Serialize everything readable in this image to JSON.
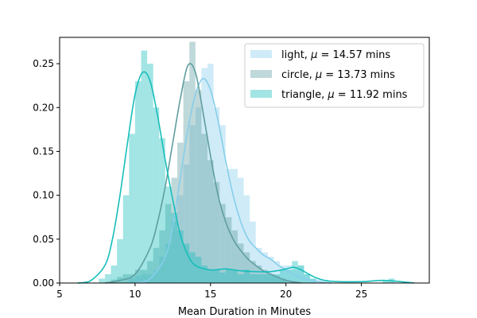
{
  "chart_data": {
    "type": "histogram-kde",
    "xlabel": "Mean Duration in Minutes",
    "ylabel": "",
    "xlim": [
      5,
      29.5
    ],
    "ylim": [
      0,
      0.28
    ],
    "x_ticks": [
      5,
      10,
      15,
      20,
      25
    ],
    "y_ticks": [
      0.0,
      0.05,
      0.1,
      0.15,
      0.2,
      0.25
    ],
    "grid": false,
    "legend_position": "upper right",
    "bin_width": 0.4,
    "series": [
      {
        "name": "light,  μ = 14.57 mins",
        "legend_prefix": "light,  ",
        "legend_value": "= 14.57 mins",
        "color": "#87ceeb",
        "bins": [
          [
            9.6,
            0.005
          ],
          [
            10.0,
            0.008
          ],
          [
            10.4,
            0.01
          ],
          [
            10.8,
            0.01
          ],
          [
            11.2,
            0.015
          ],
          [
            11.6,
            0.03
          ],
          [
            12.0,
            0.045
          ],
          [
            12.4,
            0.07
          ],
          [
            12.8,
            0.1
          ],
          [
            13.2,
            0.135
          ],
          [
            13.6,
            0.18
          ],
          [
            14.0,
            0.2
          ],
          [
            14.4,
            0.245
          ],
          [
            14.8,
            0.25
          ],
          [
            15.2,
            0.2
          ],
          [
            15.6,
            0.18
          ],
          [
            16.0,
            0.13
          ],
          [
            16.4,
            0.13
          ],
          [
            16.8,
            0.12
          ],
          [
            17.2,
            0.1
          ],
          [
            17.6,
            0.07
          ],
          [
            18.0,
            0.04
          ],
          [
            18.4,
            0.035
          ],
          [
            18.8,
            0.03
          ],
          [
            19.2,
            0.025
          ],
          [
            19.6,
            0.02
          ],
          [
            20.0,
            0.02
          ],
          [
            20.4,
            0.015
          ],
          [
            20.8,
            0.02
          ],
          [
            21.2,
            0.01
          ],
          [
            21.6,
            0.005
          ],
          [
            22.0,
            0.004
          ]
        ],
        "kde": [
          [
            10.0,
            0.0
          ],
          [
            11.0,
            0.005
          ],
          [
            12.0,
            0.03
          ],
          [
            12.5,
            0.065
          ],
          [
            13.0,
            0.12
          ],
          [
            13.5,
            0.175
          ],
          [
            14.0,
            0.215
          ],
          [
            14.5,
            0.233
          ],
          [
            15.0,
            0.22
          ],
          [
            15.5,
            0.185
          ],
          [
            16.0,
            0.14
          ],
          [
            16.5,
            0.1
          ],
          [
            17.0,
            0.07
          ],
          [
            17.5,
            0.05
          ],
          [
            18.0,
            0.04
          ],
          [
            18.5,
            0.032
          ],
          [
            19.0,
            0.027
          ],
          [
            19.5,
            0.02
          ],
          [
            20.0,
            0.015
          ],
          [
            20.5,
            0.01
          ],
          [
            21.0,
            0.006
          ],
          [
            22.0,
            0.002
          ],
          [
            23.0,
            0.0
          ]
        ]
      },
      {
        "name": "circle,  μ = 13.73 mins",
        "legend_prefix": "circle,  ",
        "legend_value": "= 13.73 mins",
        "color": "#5f9ea0",
        "bins": [
          [
            8.4,
            0.004
          ],
          [
            8.8,
            0.007
          ],
          [
            9.2,
            0.01
          ],
          [
            9.6,
            0.01
          ],
          [
            10.0,
            0.015
          ],
          [
            10.4,
            0.015
          ],
          [
            10.8,
            0.025
          ],
          [
            11.2,
            0.04
          ],
          [
            11.6,
            0.06
          ],
          [
            12.0,
            0.09
          ],
          [
            12.4,
            0.12
          ],
          [
            12.8,
            0.16
          ],
          [
            13.2,
            0.23
          ],
          [
            13.6,
            0.275
          ],
          [
            14.0,
            0.22
          ],
          [
            14.4,
            0.17
          ],
          [
            14.8,
            0.14
          ],
          [
            15.2,
            0.115
          ],
          [
            15.6,
            0.09
          ],
          [
            16.0,
            0.075
          ],
          [
            16.4,
            0.06
          ],
          [
            16.8,
            0.045
          ],
          [
            17.2,
            0.035
          ],
          [
            17.6,
            0.025
          ],
          [
            18.0,
            0.02
          ],
          [
            18.4,
            0.015
          ],
          [
            18.8,
            0.01
          ],
          [
            19.2,
            0.008
          ],
          [
            19.6,
            0.005
          ]
        ],
        "kde": [
          [
            8.0,
            0.0
          ],
          [
            9.0,
            0.003
          ],
          [
            10.0,
            0.01
          ],
          [
            11.0,
            0.04
          ],
          [
            11.5,
            0.07
          ],
          [
            12.0,
            0.11
          ],
          [
            12.5,
            0.16
          ],
          [
            13.0,
            0.21
          ],
          [
            13.5,
            0.248
          ],
          [
            14.0,
            0.24
          ],
          [
            14.5,
            0.195
          ],
          [
            15.0,
            0.145
          ],
          [
            15.5,
            0.1
          ],
          [
            16.0,
            0.07
          ],
          [
            16.5,
            0.05
          ],
          [
            17.0,
            0.037
          ],
          [
            17.5,
            0.027
          ],
          [
            18.0,
            0.02
          ],
          [
            18.5,
            0.014
          ],
          [
            19.0,
            0.01
          ],
          [
            20.0,
            0.003
          ],
          [
            21.0,
            0.0
          ]
        ]
      },
      {
        "name": "triangle,  μ = 11.92 mins",
        "legend_prefix": "triangle,  ",
        "legend_value": "= 11.92 mins",
        "color": "#17bebb",
        "bins": [
          [
            7.6,
            0.005
          ],
          [
            8.0,
            0.01
          ],
          [
            8.4,
            0.02
          ],
          [
            8.8,
            0.05
          ],
          [
            9.2,
            0.1
          ],
          [
            9.6,
            0.17
          ],
          [
            10.0,
            0.23
          ],
          [
            10.4,
            0.265
          ],
          [
            10.8,
            0.25
          ],
          [
            11.2,
            0.2
          ],
          [
            11.6,
            0.165
          ],
          [
            12.0,
            0.11
          ],
          [
            12.4,
            0.08
          ],
          [
            12.8,
            0.06
          ],
          [
            13.2,
            0.045
          ],
          [
            13.6,
            0.035
          ],
          [
            14.0,
            0.03
          ],
          [
            14.4,
            0.02
          ],
          [
            14.8,
            0.015
          ],
          [
            15.2,
            0.015
          ],
          [
            15.6,
            0.012
          ],
          [
            16.0,
            0.015
          ],
          [
            16.4,
            0.015
          ],
          [
            16.8,
            0.01
          ],
          [
            17.2,
            0.015
          ],
          [
            17.6,
            0.01
          ],
          [
            18.0,
            0.01
          ],
          [
            18.4,
            0.01
          ],
          [
            18.8,
            0.01
          ],
          [
            19.2,
            0.01
          ],
          [
            19.6,
            0.015
          ],
          [
            20.0,
            0.015
          ],
          [
            20.4,
            0.025
          ],
          [
            20.8,
            0.02
          ],
          [
            21.2,
            0.01
          ],
          [
            21.6,
            0.005
          ],
          [
            26.4,
            0.003
          ],
          [
            26.8,
            0.005
          ]
        ],
        "kde": [
          [
            6.2,
            0.0
          ],
          [
            7.0,
            0.002
          ],
          [
            8.0,
            0.02
          ],
          [
            8.5,
            0.05
          ],
          [
            9.0,
            0.1
          ],
          [
            9.5,
            0.16
          ],
          [
            10.0,
            0.215
          ],
          [
            10.5,
            0.24
          ],
          [
            11.0,
            0.23
          ],
          [
            11.5,
            0.19
          ],
          [
            12.0,
            0.14
          ],
          [
            12.5,
            0.095
          ],
          [
            13.0,
            0.055
          ],
          [
            13.5,
            0.032
          ],
          [
            14.0,
            0.02
          ],
          [
            15.0,
            0.015
          ],
          [
            16.0,
            0.016
          ],
          [
            17.0,
            0.014
          ],
          [
            18.0,
            0.013
          ],
          [
            19.0,
            0.013
          ],
          [
            20.0,
            0.016
          ],
          [
            20.5,
            0.018
          ],
          [
            21.0,
            0.015
          ],
          [
            22.0,
            0.006
          ],
          [
            23.0,
            0.002
          ],
          [
            25.0,
            0.0015
          ],
          [
            26.5,
            0.003
          ],
          [
            28.5,
            0.0
          ]
        ]
      }
    ]
  }
}
